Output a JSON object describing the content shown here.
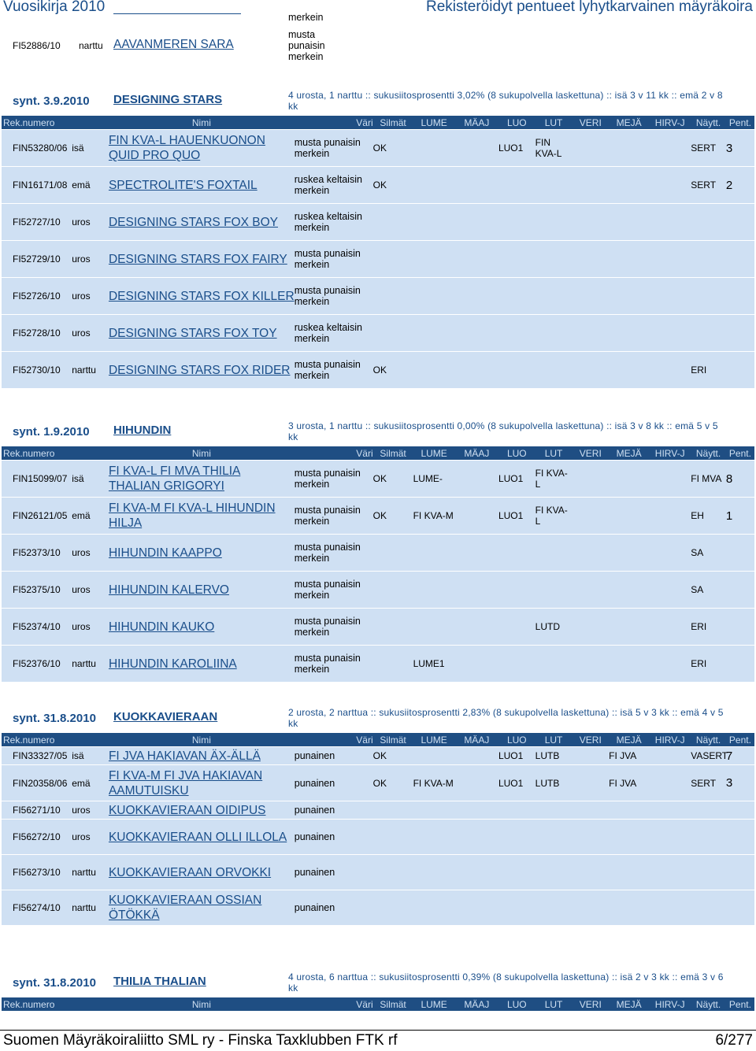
{
  "header": {
    "left": "Vuosikirja 2010",
    "right": "Rekisteröidyt pentueet lyhytkarvainen mäyräkoira"
  },
  "footer": {
    "left": "Suomen Mäyräkoiraliitto SML ry - Finska Taxklubben FTK rf",
    "right": "6/277"
  },
  "columns": [
    "Rek.numero",
    "Nimi",
    "Väri",
    "Silmät",
    "LUME",
    "MÄAJ",
    "LUO",
    "LUT",
    "VERI",
    "MEJÄ",
    "HIRV-J",
    "Näytt.",
    "Pent."
  ],
  "top_rows": [
    {
      "color": "merkein"
    },
    {
      "reg": "FI52886/10",
      "sex": "narttu",
      "name": "AAVANMEREN SARA",
      "color": "musta punaisin merkein"
    }
  ],
  "sections": [
    {
      "synt": "synt. 3.9.2010",
      "name": "DESIGNING STARS",
      "summary": "4 urosta, 1 narttu :: sukusiitosprosentti 3,02% (8 sukupolvella laskettuna) :: isä 3 v 11 kk :: emä 2 v 8 kk",
      "rows": [
        {
          "reg": "FIN53280/06",
          "sex": "isä",
          "name": "FIN KVA-L HAUENKUONON QUID PRO QUO",
          "color": "musta punaisin merkein",
          "silmat": "OK",
          "lume": "",
          "maaj": "",
          "luo": "LUO1",
          "lut": "FIN KVA-L",
          "veri": "",
          "meja": "",
          "hirv": "",
          "naytt": "SERT",
          "pent": "3"
        },
        {
          "reg": "FIN16171/08",
          "sex": "emä",
          "name": "SPECTROLITE'S FOXTAIL",
          "color": "ruskea keltaisin merkein",
          "silmat": "OK",
          "lume": "",
          "maaj": "",
          "luo": "",
          "lut": "",
          "veri": "",
          "meja": "",
          "hirv": "",
          "naytt": "SERT",
          "pent": "2"
        },
        {
          "reg": "FI52727/10",
          "sex": "uros",
          "name": "DESIGNING STARS FOX BOY",
          "color": "ruskea keltaisin merkein"
        },
        {
          "reg": "FI52729/10",
          "sex": "uros",
          "name": "DESIGNING STARS FOX FAIRY",
          "color": "musta punaisin merkein"
        },
        {
          "reg": "FI52726/10",
          "sex": "uros",
          "name": "DESIGNING STARS FOX KILLER",
          "color": "musta punaisin merkein"
        },
        {
          "reg": "FI52728/10",
          "sex": "uros",
          "name": "DESIGNING STARS FOX TOY",
          "color": "ruskea keltaisin merkein"
        },
        {
          "reg": "FI52730/10",
          "sex": "narttu",
          "name": "DESIGNING STARS FOX RIDER",
          "color": "musta punaisin merkein",
          "silmat": "OK",
          "naytt": "ERI"
        }
      ]
    },
    {
      "synt": "synt. 1.9.2010",
      "name": "HIHUNDIN",
      "summary": "3 urosta, 1 narttu :: sukusiitosprosentti 0,00% (8 sukupolvella laskettuna) :: isä 3 v 8 kk :: emä 5 v 5 kk",
      "rows": [
        {
          "reg": "FIN15099/07",
          "sex": "isä",
          "name": "FI KVA-L FI MVA THILIA THALIAN GRIGORYI",
          "color": "musta punaisin merkein",
          "silmat": "OK",
          "lume": "LUME-",
          "maaj": "",
          "luo": "LUO1",
          "lut": "FI KVA-L",
          "naytt": "FI MVA",
          "pent": "8"
        },
        {
          "reg": "FIN26121/05",
          "sex": "emä",
          "name": "FI KVA-M FI KVA-L HIHUNDIN HILJA",
          "color": "musta punaisin merkein",
          "silmat": "OK",
          "lume": "FI KVA-M",
          "luo": "LUO1",
          "lut": "FI KVA-L",
          "naytt": "EH",
          "pent": "1"
        },
        {
          "reg": "FI52373/10",
          "sex": "uros",
          "name": "HIHUNDIN KAAPPO",
          "color": "musta punaisin merkein",
          "naytt": "SA"
        },
        {
          "reg": "FI52375/10",
          "sex": "uros",
          "name": "HIHUNDIN KALERVO",
          "color": "musta punaisin merkein",
          "naytt": "SA"
        },
        {
          "reg": "FI52374/10",
          "sex": "uros",
          "name": "HIHUNDIN KAUKO",
          "color": "musta punaisin merkein",
          "lut": "LUTD",
          "naytt": "ERI"
        },
        {
          "reg": "FI52376/10",
          "sex": "narttu",
          "name": "HIHUNDIN KAROLIINA",
          "color": "musta punaisin merkein",
          "lume": "LUME1",
          "naytt": "ERI"
        }
      ]
    },
    {
      "synt": "synt. 31.8.2010",
      "name": "KUOKKAVIERAAN",
      "summary": "2 urosta, 2 narttua :: sukusiitosprosentti 2,83% (8 sukupolvella laskettuna) :: isä 5 v 3 kk :: emä 4 v 5 kk",
      "rows": [
        {
          "reg": "FIN33327/05",
          "sex": "isä",
          "name": "FI JVA HAKIAVAN ÄX-ÄLLÄ",
          "color": "punainen",
          "silmat": "OK",
          "luo": "LUO1",
          "lut": "LUTB",
          "meja": "FI JVA",
          "naytt": "VASERT",
          "pent": "7"
        },
        {
          "reg": "FIN20358/06",
          "sex": "emä",
          "name": "FI KVA-M FI JVA HAKIAVAN AAMUTUISKU",
          "color": "punainen",
          "silmat": "OK",
          "lume": "FI KVA-M",
          "luo": "LUO1",
          "lut": "LUTB",
          "meja": "FI JVA",
          "naytt": "SERT",
          "pent": "3"
        },
        {
          "reg": "FI56271/10",
          "sex": "uros",
          "name": "KUOKKAVIERAAN OIDIPUS",
          "color": "punainen"
        },
        {
          "reg": "FI56272/10",
          "sex": "uros",
          "name": "KUOKKAVIERAAN OLLI ILLOLA",
          "color": "punainen"
        },
        {
          "reg": "FI56273/10",
          "sex": "narttu",
          "name": "KUOKKAVIERAAN ORVOKKI",
          "color": "punainen"
        },
        {
          "reg": "FI56274/10",
          "sex": "narttu",
          "name": "KUOKKAVIERAAN OSSIAN ÖTÖKKÄ",
          "color": "punainen"
        }
      ]
    },
    {
      "synt": "synt. 31.8.2010",
      "name": "THILIA THALIAN",
      "summary": "4 urosta, 6 narttua :: sukusiitosprosentti 0,39% (8 sukupolvella laskettuna) :: isä 2 v 3 kk :: emä 3 v 6 kk",
      "rows": []
    }
  ]
}
